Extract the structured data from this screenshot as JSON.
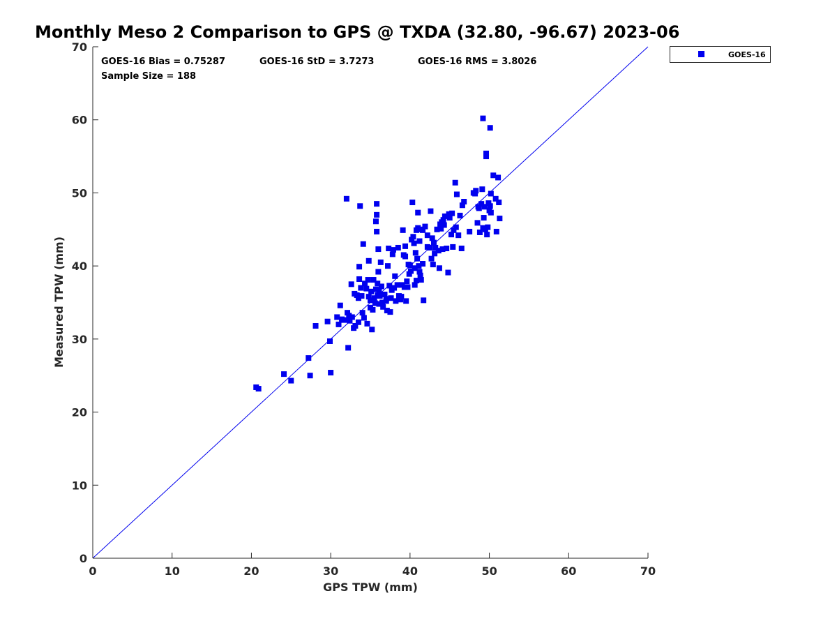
{
  "chart_data": {
    "type": "scatter",
    "title": "Monthly Meso 2 Comparison to GPS @ TXDA (32.80, -96.67) 2023-06",
    "xlabel": "GPS TPW (mm)",
    "ylabel": "Measured TPW (mm)",
    "xlim": [
      0,
      70
    ],
    "ylim": [
      0,
      70
    ],
    "xticks": [
      0,
      10,
      20,
      30,
      40,
      50,
      60,
      70
    ],
    "yticks": [
      0,
      10,
      20,
      30,
      40,
      50,
      60,
      70
    ],
    "grid": false,
    "legend_position": "top-right, outside plot",
    "reference_line": "y = x",
    "annotations": {
      "bias": "GOES-16 Bias = 0.75287",
      "std": "GOES-16 StD = 3.7273",
      "rms": "GOES-16 RMS = 3.8026",
      "sample_size": "Sample Size = 188"
    },
    "series": [
      {
        "name": "GOES-16",
        "color": "#0000ee",
        "marker": "square",
        "points": [
          [
            20.6,
            23.4
          ],
          [
            20.9,
            23.2
          ],
          [
            24.1,
            25.2
          ],
          [
            25.0,
            24.3
          ],
          [
            27.2,
            27.4
          ],
          [
            27.4,
            25.0
          ],
          [
            28.1,
            31.8
          ],
          [
            29.6,
            32.4
          ],
          [
            29.9,
            29.7
          ],
          [
            30.0,
            25.4
          ],
          [
            30.8,
            33.0
          ],
          [
            31.0,
            32.0
          ],
          [
            31.2,
            34.6
          ],
          [
            31.4,
            32.7
          ],
          [
            31.7,
            32.6
          ],
          [
            32.0,
            49.2
          ],
          [
            32.1,
            33.6
          ],
          [
            32.2,
            28.8
          ],
          [
            32.4,
            32.5
          ],
          [
            32.6,
            37.5
          ],
          [
            32.7,
            33.0
          ],
          [
            32.9,
            31.5
          ],
          [
            33.0,
            36.2
          ],
          [
            33.1,
            31.8
          ],
          [
            33.3,
            36.0
          ],
          [
            33.5,
            35.6
          ],
          [
            33.5,
            32.3
          ],
          [
            33.6,
            39.9
          ],
          [
            33.6,
            38.2
          ],
          [
            33.7,
            48.2
          ],
          [
            33.8,
            37.0
          ],
          [
            33.9,
            35.9
          ],
          [
            34.0,
            33.6
          ],
          [
            34.1,
            43.0
          ],
          [
            34.2,
            32.9
          ],
          [
            34.3,
            37.6
          ],
          [
            34.5,
            36.9
          ],
          [
            34.6,
            32.1
          ],
          [
            34.7,
            38.1
          ],
          [
            34.8,
            35.8
          ],
          [
            34.8,
            40.7
          ],
          [
            35.0,
            35.3
          ],
          [
            35.0,
            34.3
          ],
          [
            35.1,
            36.5
          ],
          [
            35.2,
            31.3
          ],
          [
            35.3,
            34.0
          ],
          [
            35.4,
            38.1
          ],
          [
            35.5,
            35.6
          ],
          [
            35.6,
            34.9
          ],
          [
            35.7,
            46.1
          ],
          [
            35.8,
            44.7
          ],
          [
            35.8,
            47.0
          ],
          [
            35.8,
            48.5
          ],
          [
            35.9,
            36.0
          ],
          [
            35.9,
            37.6
          ],
          [
            36.0,
            39.2
          ],
          [
            36.0,
            42.3
          ],
          [
            36.1,
            34.8
          ],
          [
            36.2,
            35.9
          ],
          [
            36.3,
            40.5
          ],
          [
            36.4,
            37.2
          ],
          [
            36.5,
            35.0
          ],
          [
            36.6,
            34.4
          ],
          [
            36.8,
            36.1
          ],
          [
            37.0,
            35.5
          ],
          [
            37.1,
            33.9
          ],
          [
            37.2,
            40.0
          ],
          [
            37.3,
            42.4
          ],
          [
            37.4,
            37.3
          ],
          [
            37.5,
            33.7
          ],
          [
            37.6,
            35.6
          ],
          [
            37.7,
            36.7
          ],
          [
            37.8,
            41.6
          ],
          [
            37.9,
            42.2
          ],
          [
            38.0,
            37.0
          ],
          [
            38.1,
            38.6
          ],
          [
            38.2,
            35.2
          ],
          [
            38.4,
            37.4
          ],
          [
            38.5,
            42.5
          ],
          [
            38.6,
            35.9
          ],
          [
            38.8,
            35.4
          ],
          [
            38.9,
            35.8
          ],
          [
            39.0,
            37.4
          ],
          [
            39.1,
            44.9
          ],
          [
            39.2,
            41.5
          ],
          [
            39.3,
            37.1
          ],
          [
            39.4,
            42.7
          ],
          [
            39.4,
            41.3
          ],
          [
            39.5,
            35.2
          ],
          [
            39.6,
            37.9
          ],
          [
            39.7,
            37.1
          ],
          [
            39.8,
            40.2
          ],
          [
            40.0,
            40.1
          ],
          [
            40.1,
            39.3
          ],
          [
            40.2,
            43.6
          ],
          [
            40.3,
            48.7
          ],
          [
            40.4,
            44.0
          ],
          [
            40.5,
            43.1
          ],
          [
            40.6,
            39.7
          ],
          [
            40.6,
            37.4
          ],
          [
            40.7,
            41.8
          ],
          [
            40.8,
            44.9
          ],
          [
            40.8,
            38.0
          ],
          [
            40.9,
            41.0
          ],
          [
            41.0,
            47.3
          ],
          [
            41.0,
            45.2
          ],
          [
            41.1,
            40.0
          ],
          [
            41.2,
            43.4
          ],
          [
            41.2,
            39.2
          ],
          [
            41.3,
            38.7
          ],
          [
            41.4,
            38.1
          ],
          [
            41.5,
            45.0
          ],
          [
            41.6,
            40.3
          ],
          [
            41.7,
            35.3
          ],
          [
            41.9,
            45.4
          ],
          [
            42.2,
            44.2
          ],
          [
            42.5,
            42.5
          ],
          [
            42.6,
            47.5
          ],
          [
            42.7,
            41.0
          ],
          [
            42.8,
            43.8
          ],
          [
            42.9,
            40.2
          ],
          [
            43.0,
            43.2
          ],
          [
            43.1,
            41.7
          ],
          [
            43.2,
            42.5
          ],
          [
            43.4,
            45.0
          ],
          [
            43.6,
            42.1
          ],
          [
            43.7,
            39.7
          ],
          [
            43.8,
            45.7
          ],
          [
            44.0,
            46.0
          ],
          [
            44.1,
            42.3
          ],
          [
            44.2,
            46.3
          ],
          [
            44.3,
            45.6
          ],
          [
            44.4,
            46.8
          ],
          [
            44.6,
            42.4
          ],
          [
            44.8,
            39.1
          ],
          [
            45.0,
            46.6
          ],
          [
            45.2,
            44.3
          ],
          [
            45.3,
            47.2
          ],
          [
            45.4,
            42.6
          ],
          [
            45.5,
            44.9
          ],
          [
            45.7,
            51.4
          ],
          [
            45.8,
            45.3
          ],
          [
            45.9,
            49.8
          ],
          [
            46.1,
            44.2
          ],
          [
            46.3,
            46.9
          ],
          [
            46.5,
            42.4
          ],
          [
            46.6,
            48.3
          ],
          [
            46.8,
            48.8
          ],
          [
            47.5,
            44.7
          ],
          [
            48.0,
            50.0
          ],
          [
            48.2,
            49.9
          ],
          [
            48.3,
            50.3
          ],
          [
            48.5,
            45.9
          ],
          [
            48.6,
            48.1
          ],
          [
            48.7,
            47.9
          ],
          [
            48.8,
            44.6
          ],
          [
            49.0,
            48.5
          ],
          [
            49.1,
            50.5
          ],
          [
            49.2,
            45.2
          ],
          [
            49.2,
            60.2
          ],
          [
            49.3,
            46.6
          ],
          [
            49.4,
            48.1
          ],
          [
            49.5,
            45.0
          ],
          [
            49.6,
            55.4
          ],
          [
            49.6,
            55.0
          ],
          [
            49.7,
            44.3
          ],
          [
            49.8,
            45.3
          ],
          [
            49.9,
            48.6
          ],
          [
            50.0,
            47.6
          ],
          [
            50.1,
            58.9
          ],
          [
            50.1,
            48.2
          ],
          [
            50.2,
            49.9
          ],
          [
            50.2,
            47.3
          ],
          [
            50.5,
            52.4
          ],
          [
            50.8,
            49.2
          ],
          [
            50.9,
            44.7
          ],
          [
            51.1,
            52.1
          ],
          [
            51.2,
            48.7
          ],
          [
            51.3,
            46.5
          ],
          [
            43.9,
            45.1
          ],
          [
            41.6,
            44.9
          ],
          [
            36.1,
            36.6
          ],
          [
            39.9,
            38.9
          ],
          [
            44.9,
            47.1
          ],
          [
            32.3,
            33.2
          ],
          [
            37.0,
            35.2
          ],
          [
            35.7,
            36.8
          ],
          [
            42.2,
            42.6
          ]
        ]
      }
    ]
  }
}
